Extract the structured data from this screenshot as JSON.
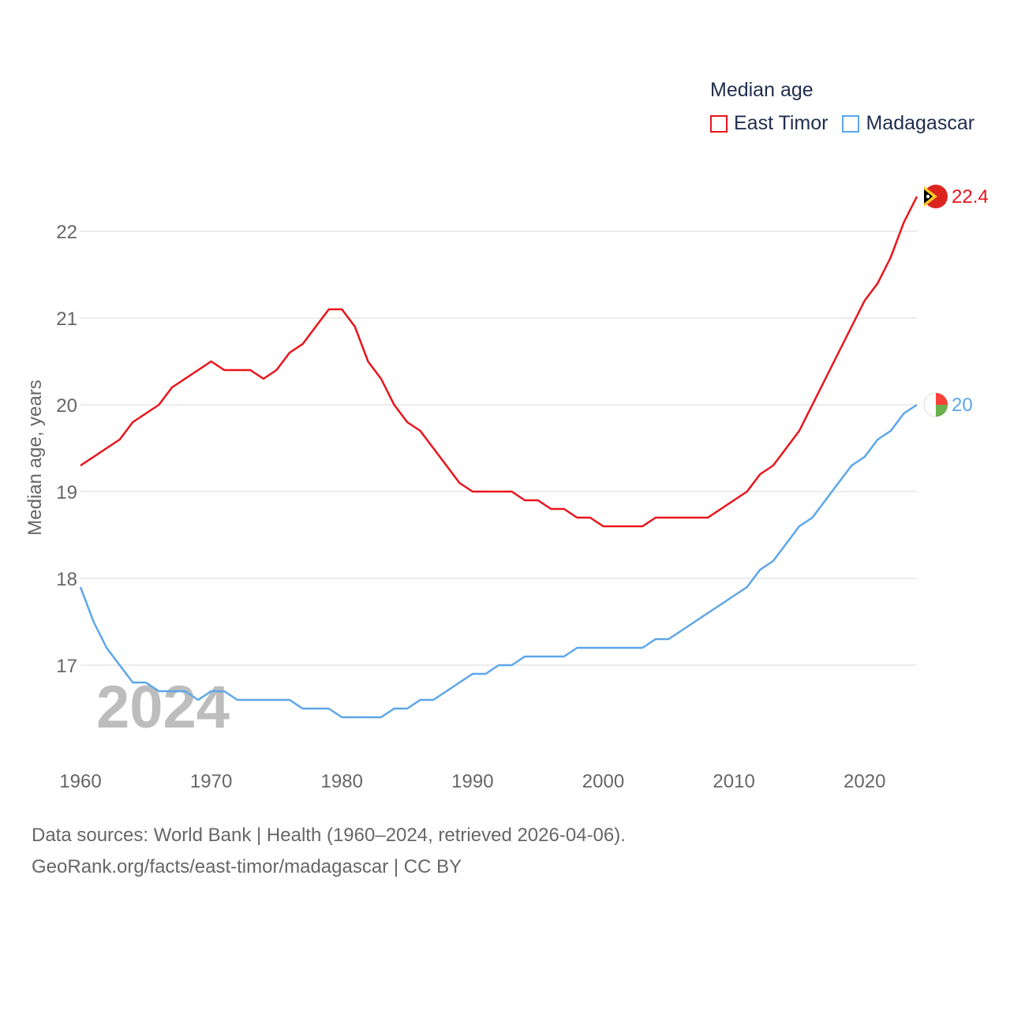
{
  "chart_data": {
    "type": "line",
    "title": "Median age",
    "xlabel": "",
    "ylabel": "Median age, years",
    "year_label": "2024",
    "xlim": [
      1960,
      2024
    ],
    "ylim": [
      16,
      22.7
    ],
    "x_ticks": [
      1960,
      1970,
      1980,
      1990,
      2000,
      2010,
      2020
    ],
    "y_ticks": [
      17,
      18,
      19,
      20,
      21,
      22
    ],
    "grid": true,
    "legend_position": "top-right",
    "x": [
      1960,
      1961,
      1962,
      1963,
      1964,
      1965,
      1966,
      1967,
      1968,
      1969,
      1970,
      1971,
      1972,
      1973,
      1974,
      1975,
      1976,
      1977,
      1978,
      1979,
      1980,
      1981,
      1982,
      1983,
      1984,
      1985,
      1986,
      1987,
      1988,
      1989,
      1990,
      1991,
      1992,
      1993,
      1994,
      1995,
      1996,
      1997,
      1998,
      1999,
      2000,
      2001,
      2002,
      2003,
      2004,
      2005,
      2006,
      2007,
      2008,
      2009,
      2010,
      2011,
      2012,
      2013,
      2014,
      2015,
      2016,
      2017,
      2018,
      2019,
      2020,
      2021,
      2022,
      2023,
      2024
    ],
    "series": [
      {
        "name": "East Timor",
        "color": "#e8141c",
        "end_label": "22.4",
        "values": [
          19.3,
          19.4,
          19.5,
          19.6,
          19.8,
          19.9,
          20.0,
          20.2,
          20.3,
          20.4,
          20.5,
          20.4,
          20.4,
          20.4,
          20.3,
          20.4,
          20.6,
          20.7,
          20.9,
          21.1,
          21.1,
          20.9,
          20.5,
          20.3,
          20.0,
          19.8,
          19.7,
          19.5,
          19.3,
          19.1,
          19.0,
          19.0,
          19.0,
          19.0,
          18.9,
          18.9,
          18.8,
          18.8,
          18.7,
          18.7,
          18.6,
          18.6,
          18.6,
          18.6,
          18.7,
          18.7,
          18.7,
          18.7,
          18.7,
          18.8,
          18.9,
          19.0,
          19.2,
          19.3,
          19.5,
          19.7,
          20.0,
          20.3,
          20.6,
          20.9,
          21.2,
          21.4,
          21.7,
          22.1,
          22.4
        ]
      },
      {
        "name": "Madagascar",
        "color": "#5da6e8",
        "end_label": "20",
        "values": [
          17.9,
          17.5,
          17.2,
          17.0,
          16.8,
          16.8,
          16.7,
          16.7,
          16.7,
          16.6,
          16.7,
          16.7,
          16.6,
          16.6,
          16.6,
          16.6,
          16.6,
          16.5,
          16.5,
          16.5,
          16.4,
          16.4,
          16.4,
          16.4,
          16.5,
          16.5,
          16.6,
          16.6,
          16.7,
          16.8,
          16.9,
          16.9,
          17.0,
          17.0,
          17.1,
          17.1,
          17.1,
          17.1,
          17.2,
          17.2,
          17.2,
          17.2,
          17.2,
          17.2,
          17.3,
          17.3,
          17.4,
          17.5,
          17.6,
          17.7,
          17.8,
          17.9,
          18.1,
          18.2,
          18.4,
          18.6,
          18.7,
          18.9,
          19.1,
          19.3,
          19.4,
          19.6,
          19.7,
          19.9,
          20.0
        ]
      }
    ]
  },
  "source": {
    "line1": "Data sources: World Bank | Health (1960–2024, retrieved 2026-04-06).",
    "line2": "GeoRank.org/facts/east-timor/madagascar | CC BY"
  }
}
